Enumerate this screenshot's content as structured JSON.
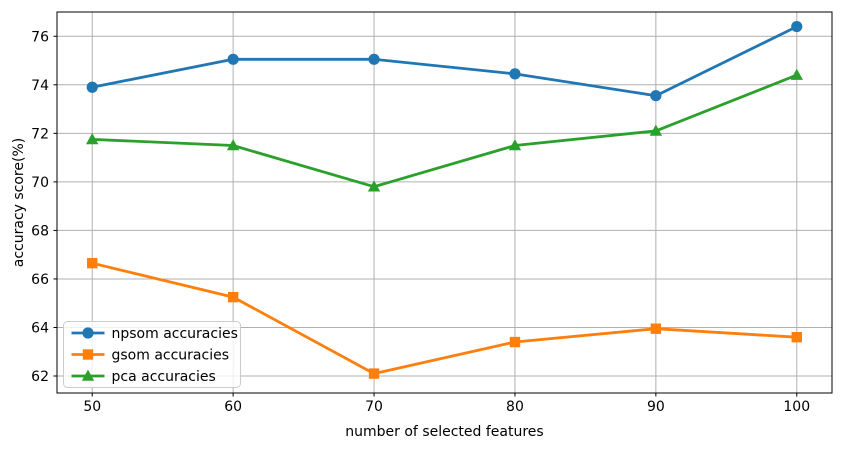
{
  "figure": {
    "background": "#ffffff"
  },
  "chart_data": {
    "type": "line",
    "title": "",
    "xlabel": "number of selected features",
    "ylabel": "accuracy score(%)",
    "x": [
      50,
      60,
      70,
      80,
      90,
      100
    ],
    "series": [
      {
        "name": "npsom accuracies",
        "color": "#1f77b4",
        "marker": "circle",
        "values": [
          73.9,
          75.05,
          75.05,
          74.45,
          73.55,
          76.4
        ]
      },
      {
        "name": "gsom accuracies",
        "color": "#ff7f0e",
        "marker": "square",
        "values": [
          66.65,
          65.25,
          62.1,
          63.4,
          63.95,
          63.6
        ]
      },
      {
        "name": "pca accuracies",
        "color": "#2ca02c",
        "marker": "triangle",
        "values": [
          71.75,
          71.5,
          69.8,
          71.5,
          72.1,
          74.4
        ]
      }
    ],
    "xticks": [
      50,
      60,
      70,
      80,
      90,
      100
    ],
    "yticks": [
      62,
      64,
      66,
      68,
      70,
      72,
      74,
      76
    ],
    "xlim": [
      47.5,
      102.5
    ],
    "ylim": [
      61.3,
      77.0
    ],
    "grid": true,
    "grid_color": "#b0b0b0",
    "axis_color": "#000000",
    "legend": {
      "position": "lower-left",
      "border_color": "#cccccc",
      "background": "#ffffff"
    }
  }
}
